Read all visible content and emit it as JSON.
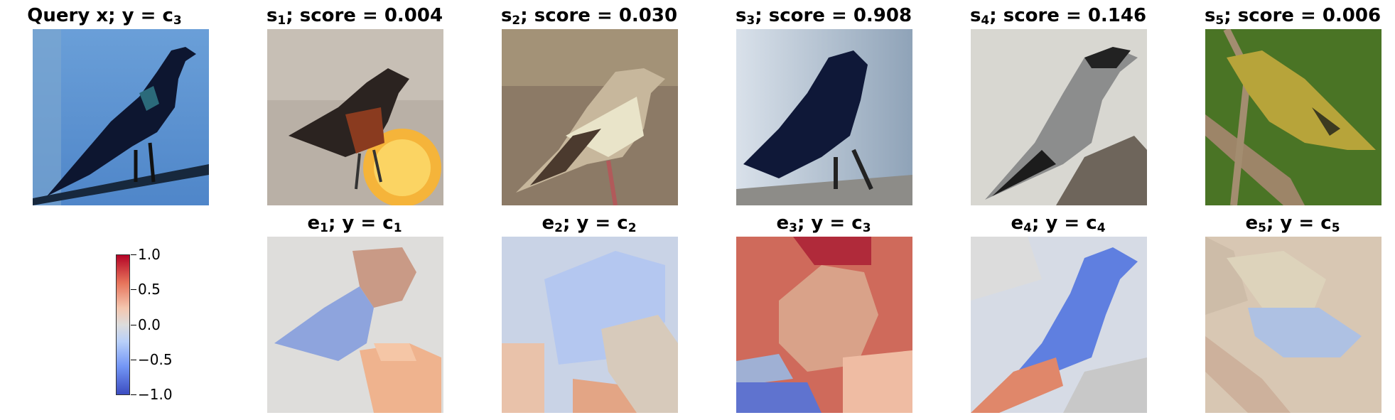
{
  "query": {
    "title_prefix": "Query x; y",
    "title_eq": "=",
    "title_var": "c",
    "title_sub": "3"
  },
  "sources": [
    {
      "var": "s",
      "sub": "1",
      "label": "; score = ",
      "score": "0.004"
    },
    {
      "var": "s",
      "sub": "2",
      "label": "; score = ",
      "score": "0.030"
    },
    {
      "var": "s",
      "sub": "3",
      "label": "; score = ",
      "score": "0.908"
    },
    {
      "var": "s",
      "sub": "4",
      "label": "; score = ",
      "score": "0.146"
    },
    {
      "var": "s",
      "sub": "5",
      "label": "; score = ",
      "score": "0.006"
    }
  ],
  "explanations": [
    {
      "var": "e",
      "sub": "1",
      "mid": "; y",
      "eq": "=",
      "cvar": "c",
      "csub": "1"
    },
    {
      "var": "e",
      "sub": "2",
      "mid": "; y",
      "eq": "=",
      "cvar": "c",
      "csub": "2"
    },
    {
      "var": "e",
      "sub": "3",
      "mid": "; y",
      "eq": "=",
      "cvar": "c",
      "csub": "3"
    },
    {
      "var": "e",
      "sub": "4",
      "mid": "; y",
      "eq": "=",
      "cvar": "c",
      "csub": "4"
    },
    {
      "var": "e",
      "sub": "5",
      "mid": "; y",
      "eq": "=",
      "cvar": "c",
      "csub": "5"
    }
  ],
  "colorbar": {
    "ticks": [
      "1.0",
      "0.5",
      "0.0",
      "−0.5",
      "−1.0"
    ],
    "colors": {
      "high": "#b40426",
      "mid": "#dddcdc",
      "low": "#3b4cc0"
    }
  }
}
